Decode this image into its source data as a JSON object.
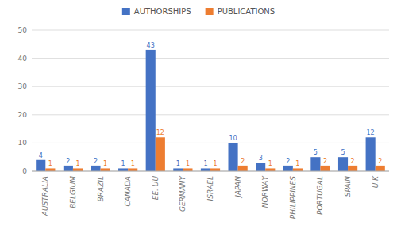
{
  "chart_data": {
    "type": "bar",
    "categories": [
      "AUSTRALIA",
      "BELGIUM",
      "BRAZIL",
      "CANADA",
      "EE. UU",
      "GERMANY",
      "ISRAEL",
      "JAPAN",
      "NORWAY",
      "PHILIPPINES",
      "PORTUGAL",
      "SPAIN",
      "U.K"
    ],
    "series": [
      {
        "name": "AUTHORSHIPS",
        "color": "#4472C4",
        "values": [
          4,
          2,
          2,
          1,
          43,
          1,
          1,
          10,
          3,
          2,
          5,
          5,
          12
        ]
      },
      {
        "name": "PUBLICATIONS",
        "color": "#ED7D31",
        "values": [
          1,
          1,
          1,
          1,
          12,
          1,
          1,
          2,
          1,
          1,
          2,
          2,
          2
        ]
      }
    ],
    "ylim": [
      0,
      50
    ],
    "yticks": [
      0,
      10,
      20,
      30,
      40,
      50
    ],
    "grid": true,
    "data_labels": true,
    "legend": "top"
  }
}
